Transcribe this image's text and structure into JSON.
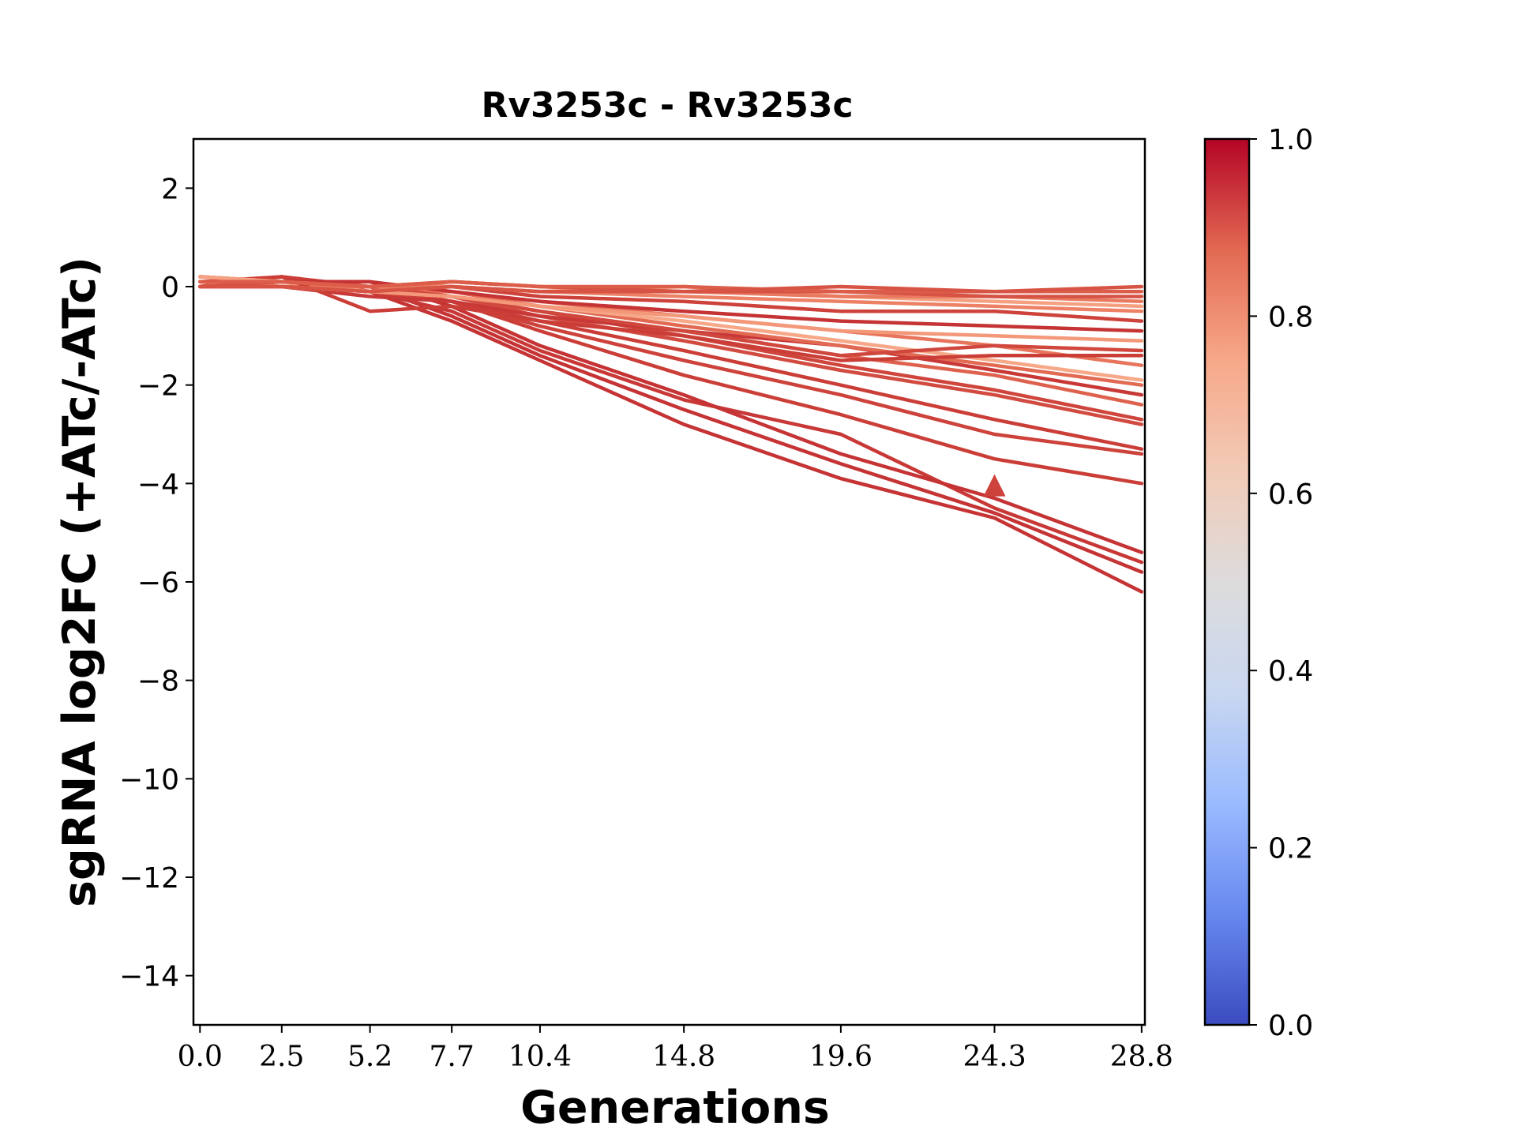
{
  "chart_data": {
    "type": "line",
    "title": "Rv3253c - Rv3253c",
    "xlabel": "Generations",
    "ylabel": "sgRNA log2FC (+ATc/-ATc)",
    "x": [
      0.0,
      2.5,
      5.2,
      7.7,
      10.4,
      14.8,
      19.6,
      24.3,
      28.8
    ],
    "x_tick_labels": [
      "0.0",
      "2.5",
      "5.2",
      "7.7",
      "10.4",
      "14.8",
      "19.6",
      "24.3",
      "28.8"
    ],
    "xlim": [
      -0.2,
      28.9
    ],
    "ylim": [
      -15,
      3
    ],
    "y_ticks": [
      2,
      0,
      -2,
      -4,
      -6,
      -8,
      -10,
      -12,
      -14
    ],
    "y_tick_labels": [
      "2",
      "0",
      "−2",
      "−4",
      "−6",
      "−8",
      "−10",
      "−12",
      "−14"
    ],
    "grid": false,
    "colormap": "coolwarm",
    "colorbar": {
      "range": [
        0.0,
        1.0
      ],
      "ticks": [
        1.0,
        0.8,
        0.6,
        0.4,
        0.2,
        0.0
      ],
      "tick_labels": [
        "1.0",
        "0.8",
        "0.6",
        "0.4",
        "0.2",
        "0.0"
      ],
      "stops": [
        "#3b4cc0",
        "#6788ee",
        "#9abbff",
        "#c9d7f0",
        "#dddcdc",
        "#f2cbb7",
        "#f7a889",
        "#e26952",
        "#b40426"
      ]
    },
    "series": [
      {
        "color": "#c53334",
        "values": [
          0.0,
          0.2,
          -0.1,
          -0.7,
          -1.5,
          -2.8,
          -3.9,
          -4.7,
          -6.2
        ]
      },
      {
        "color": "#c53334",
        "values": [
          0.1,
          0.1,
          0.0,
          -0.6,
          -1.4,
          -2.5,
          -3.6,
          -4.6,
          -5.8
        ]
      },
      {
        "color": "#c83836",
        "values": [
          0.0,
          0.0,
          -0.1,
          -0.5,
          -1.3,
          -2.3,
          -3.0,
          -4.5,
          -5.6
        ]
      },
      {
        "color": "#c53334",
        "values": [
          0.2,
          0.1,
          0.1,
          -0.4,
          -1.2,
          -2.2,
          -3.4,
          -4.3,
          -5.4
        ]
      },
      {
        "color": "#cb3e38",
        "values": [
          0.0,
          0.1,
          0.0,
          -0.3,
          -0.9,
          -1.8,
          -2.6,
          -3.5,
          -4.0
        ]
      },
      {
        "color": "#cd423b",
        "values": [
          0.1,
          0.0,
          -0.1,
          -0.3,
          -0.8,
          -1.5,
          -2.2,
          -3.0,
          -3.4
        ]
      },
      {
        "color": "#cb3e38",
        "values": [
          0.1,
          0.2,
          0.0,
          -0.3,
          -0.7,
          -1.3,
          -2.0,
          -2.7,
          -3.3
        ]
      },
      {
        "color": "#d24b40",
        "values": [
          0.0,
          0.1,
          -0.1,
          -0.2,
          -0.6,
          -1.1,
          -1.7,
          -2.2,
          -2.8
        ]
      },
      {
        "color": "#cf453c",
        "values": [
          0.1,
          0.0,
          0.0,
          -0.2,
          -0.5,
          -1.0,
          -1.6,
          -2.1,
          -2.7
        ]
      },
      {
        "color": "#de614d",
        "values": [
          0.2,
          0.1,
          0.0,
          -0.2,
          -0.5,
          -0.9,
          -1.4,
          -1.8,
          -2.4
        ]
      },
      {
        "color": "#c83836",
        "values": [
          0.0,
          0.0,
          -0.2,
          -0.3,
          -0.6,
          -0.9,
          -1.2,
          -1.7,
          -2.2
        ]
      },
      {
        "color": "#e26952",
        "values": [
          0.1,
          0.0,
          -0.1,
          -0.1,
          -0.4,
          -0.8,
          -1.2,
          -1.6,
          -2.0
        ]
      },
      {
        "color": "#f7a889",
        "values": [
          0.2,
          0.1,
          -0.1,
          -0.2,
          -0.4,
          -0.7,
          -1.1,
          -1.5,
          -1.9
        ]
      },
      {
        "color": "#e7745b",
        "values": [
          0.1,
          0.0,
          0.0,
          -0.1,
          -0.3,
          -0.6,
          -0.9,
          -1.2,
          -1.6
        ]
      },
      {
        "color": "#cb3e38",
        "values": [
          0.0,
          0.2,
          -0.5,
          -0.4,
          -0.7,
          -1.0,
          -1.5,
          -1.4,
          -1.4
        ]
      },
      {
        "color": "#d0473d",
        "values": [
          0.0,
          0.1,
          0.0,
          -0.2,
          -0.5,
          -0.9,
          -1.4,
          -1.2,
          -1.3
        ]
      },
      {
        "color": "#f4987a",
        "values": [
          0.1,
          0.0,
          -0.1,
          -0.2,
          -0.4,
          -0.6,
          -0.9,
          -1.0,
          -1.1
        ]
      },
      {
        "color": "#c53334",
        "values": [
          0.1,
          0.1,
          0.1,
          -0.1,
          -0.3,
          -0.5,
          -0.7,
          -0.8,
          -0.9
        ]
      },
      {
        "color": "#cd423b",
        "values": [
          0.0,
          0.1,
          0.0,
          0.0,
          -0.2,
          -0.3,
          -0.5,
          -0.5,
          -0.7
        ]
      },
      {
        "color": "#ec8165",
        "values": [
          0.1,
          0.0,
          -0.1,
          0.0,
          -0.1,
          -0.2,
          -0.3,
          -0.4,
          -0.5
        ]
      },
      {
        "color": "#f5a081",
        "values": [
          0.2,
          0.1,
          0.0,
          0.0,
          -0.1,
          0.0,
          -0.2,
          -0.3,
          -0.4
        ]
      },
      {
        "color": "#e97a5f",
        "values": [
          0.1,
          0.0,
          -0.1,
          0.1,
          0.0,
          -0.1,
          -0.2,
          -0.2,
          -0.3
        ]
      },
      {
        "color": "#d65244",
        "values": [
          0.0,
          0.1,
          0.0,
          0.1,
          0.0,
          -0.1,
          -0.1,
          -0.2,
          -0.2
        ]
      },
      {
        "color": "#dc5d4a",
        "values": [
          0.1,
          0.1,
          0.0,
          0.1,
          0.0,
          0.0,
          -0.1,
          -0.1,
          -0.1
        ]
      },
      {
        "color": "#d75445",
        "values": [
          0.0,
          0.0,
          -0.1,
          0.0,
          -0.1,
          -0.1,
          0.0,
          -0.1,
          0.0
        ]
      }
    ],
    "marker": {
      "shape": "triangle",
      "x": 24.3,
      "y": -4.1,
      "color": "#cd423b"
    }
  }
}
